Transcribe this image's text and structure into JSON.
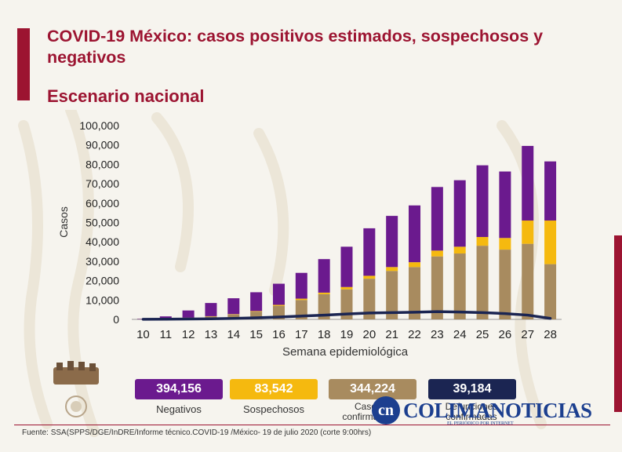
{
  "header": {
    "title": "COVID-19 México: casos positivos estimados, sospechosos y negativos",
    "subtitle": "Escenario nacional"
  },
  "colors": {
    "negativos": "#6b1a8e",
    "sospechosos": "#f5b90f",
    "confirmados": "#a88b5f",
    "defunciones": "#1b2552",
    "accent": "#9c1431"
  },
  "chart_data": {
    "type": "bar",
    "stacked": true,
    "xlabel": "Semana epidemiológica",
    "ylabel": "Casos",
    "ylim": [
      0,
      100000
    ],
    "yticks": [
      0,
      10000,
      20000,
      30000,
      40000,
      50000,
      60000,
      70000,
      80000,
      90000,
      100000
    ],
    "ytick_labels": [
      "0",
      "10,000",
      "20,000",
      "30,000",
      "40,000",
      "50,000",
      "60,000",
      "70,000",
      "80,000",
      "90,000",
      "100,000"
    ],
    "categories": [
      "10",
      "11",
      "12",
      "13",
      "14",
      "15",
      "16",
      "17",
      "18",
      "19",
      "20",
      "21",
      "22",
      "23",
      "24",
      "25",
      "26",
      "27",
      "28"
    ],
    "series": [
      {
        "key": "confirmados",
        "values": [
          100,
          300,
          800,
          1500,
          2500,
          4000,
          7000,
          10000,
          13000,
          15500,
          21000,
          25000,
          27000,
          32500,
          34000,
          38000,
          36000,
          39000,
          28500
        ]
      },
      {
        "key": "sospechosos",
        "values": [
          20,
          50,
          100,
          150,
          200,
          300,
          500,
          700,
          800,
          1200,
          1500,
          2000,
          2500,
          3000,
          3500,
          4500,
          6000,
          12000,
          22500
        ]
      },
      {
        "key": "negativos",
        "values": [
          200,
          1200,
          3700,
          6800,
          8200,
          9700,
          10900,
          13300,
          17300,
          20800,
          24500,
          26400,
          29300,
          32800,
          34300,
          37000,
          34300,
          38500,
          30500
        ]
      },
      {
        "key": "defunciones",
        "type": "line",
        "values": [
          50,
          100,
          200,
          300,
          500,
          800,
          1200,
          1700,
          2200,
          2800,
          3300,
          3500,
          3700,
          4000,
          3800,
          3500,
          3000,
          2200,
          500
        ]
      }
    ]
  },
  "summary": [
    {
      "value": "394,156",
      "label": "Negativos"
    },
    {
      "value": "83,542",
      "label": "Sospechosos"
    },
    {
      "value": "344,224",
      "label": "Casos confirmados"
    },
    {
      "value": "39,184",
      "label": "Defunciones confirmadas"
    }
  ],
  "footer": {
    "source": "Fuente: SSA(SPPS/DGE/InDRE/Informe técnico.COVID-19 /México- 19 de julio 2020 (corte 9:00hrs)"
  },
  "watermark": {
    "initials": "cn",
    "name": "COLIMANOTICIAS",
    "tagline": "EL PERIÓDICO POR INTERNET"
  }
}
